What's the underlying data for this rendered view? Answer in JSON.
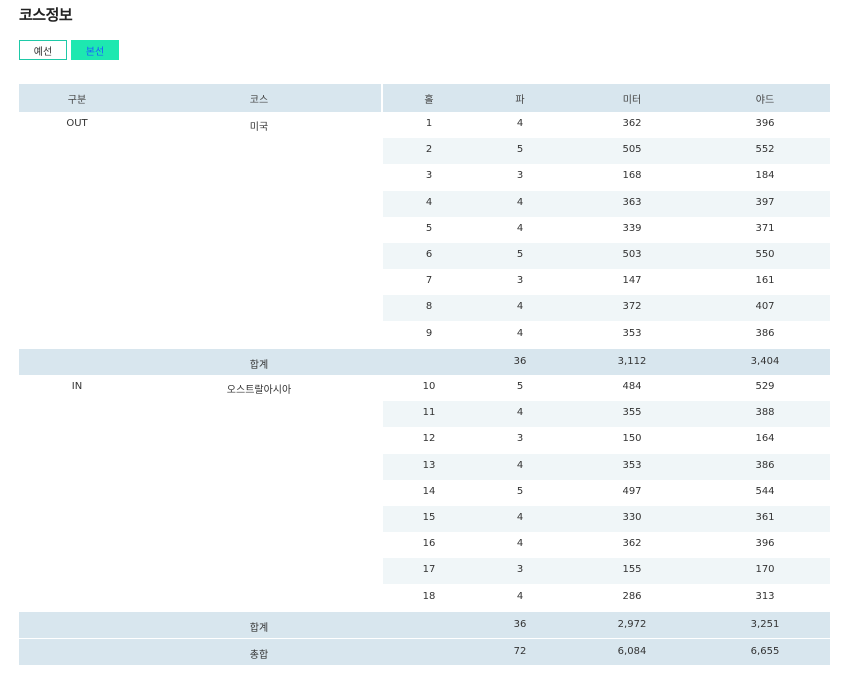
{
  "page": {
    "title": "코스정보"
  },
  "tabs": {
    "prelim": "예선",
    "main": "본선"
  },
  "headers": {
    "division": "구분",
    "course": "코스",
    "hole": "홀",
    "par": "파",
    "meter": "미터",
    "yard": "야드"
  },
  "out": {
    "division": "OUT",
    "course": "미국",
    "rows": [
      {
        "hole": "1",
        "par": "4",
        "meter": "362",
        "yard": "396"
      },
      {
        "hole": "2",
        "par": "5",
        "meter": "505",
        "yard": "552"
      },
      {
        "hole": "3",
        "par": "3",
        "meter": "168",
        "yard": "184"
      },
      {
        "hole": "4",
        "par": "4",
        "meter": "363",
        "yard": "397"
      },
      {
        "hole": "5",
        "par": "4",
        "meter": "339",
        "yard": "371"
      },
      {
        "hole": "6",
        "par": "5",
        "meter": "503",
        "yard": "550"
      },
      {
        "hole": "7",
        "par": "3",
        "meter": "147",
        "yard": "161"
      },
      {
        "hole": "8",
        "par": "4",
        "meter": "372",
        "yard": "407"
      },
      {
        "hole": "9",
        "par": "4",
        "meter": "353",
        "yard": "386"
      }
    ],
    "subtotal": {
      "label": "합계",
      "par": "36",
      "meter": "3,112",
      "yard": "3,404"
    }
  },
  "in": {
    "division": "IN",
    "course": "오스트랄아시아",
    "rows": [
      {
        "hole": "10",
        "par": "5",
        "meter": "484",
        "yard": "529"
      },
      {
        "hole": "11",
        "par": "4",
        "meter": "355",
        "yard": "388"
      },
      {
        "hole": "12",
        "par": "3",
        "meter": "150",
        "yard": "164"
      },
      {
        "hole": "13",
        "par": "4",
        "meter": "353",
        "yard": "386"
      },
      {
        "hole": "14",
        "par": "5",
        "meter": "497",
        "yard": "544"
      },
      {
        "hole": "15",
        "par": "4",
        "meter": "330",
        "yard": "361"
      },
      {
        "hole": "16",
        "par": "4",
        "meter": "362",
        "yard": "396"
      },
      {
        "hole": "17",
        "par": "3",
        "meter": "155",
        "yard": "170"
      },
      {
        "hole": "18",
        "par": "4",
        "meter": "286",
        "yard": "313"
      }
    ],
    "subtotal": {
      "label": "합계",
      "par": "36",
      "meter": "2,972",
      "yard": "3,251"
    }
  },
  "total": {
    "label": "총합",
    "par": "72",
    "meter": "6,084",
    "yard": "6,655"
  },
  "colors": {
    "header_bg": "#d8e6ee",
    "alt_row_bg": "#f0f6f8",
    "tab_active": "#1de8b0",
    "tab_border": "#1ec9a7"
  }
}
